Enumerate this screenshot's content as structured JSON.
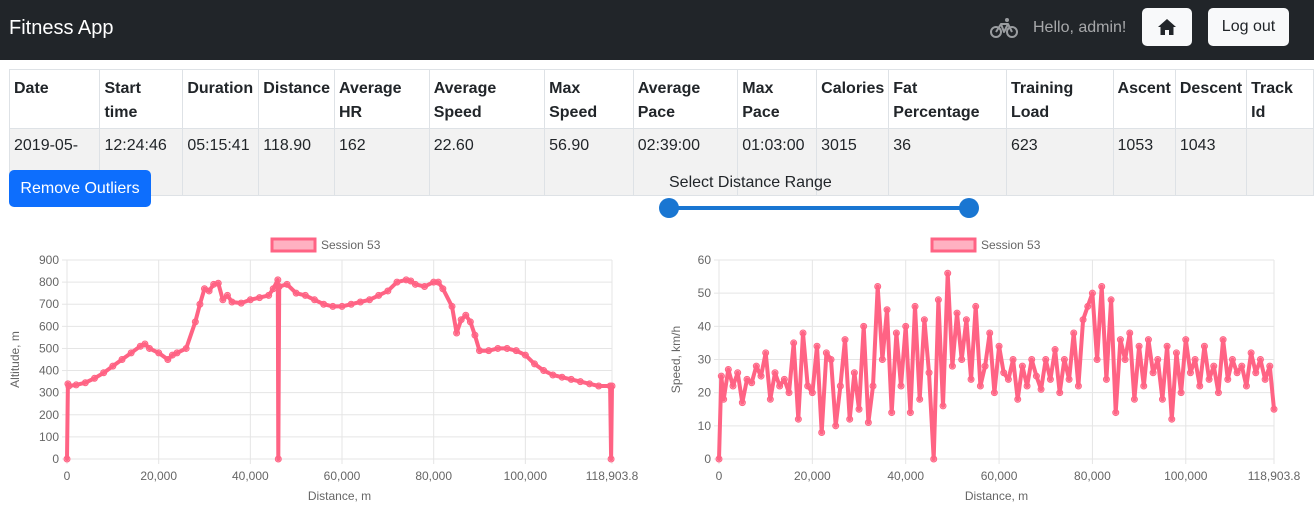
{
  "navbar": {
    "brand": "Fitness App",
    "greeting": "Hello, admin!",
    "logout_label": "Log out",
    "icons": [
      "bicycle-icon",
      "home-icon"
    ]
  },
  "table": {
    "headers": [
      [
        "Date"
      ],
      [
        "Start",
        "time"
      ],
      [
        "Duration"
      ],
      [
        "Distance"
      ],
      [
        "Average",
        "HR"
      ],
      [
        "Average",
        "Speed"
      ],
      [
        "Max",
        "Speed"
      ],
      [
        "Average",
        "Pace"
      ],
      [
        "Max",
        "Pace"
      ],
      [
        "Calories"
      ],
      [
        "Fat",
        "Percentage"
      ],
      [
        "Training",
        "Load"
      ],
      [
        "Ascent"
      ],
      [
        "Descent"
      ],
      [
        "Track",
        "Id"
      ]
    ],
    "row": [
      "2019-05-05",
      "12:24:46",
      "05:15:41",
      "118.90",
      "162",
      "22.60",
      "56.90",
      "02:39:00",
      "01:03:00",
      "3015",
      "36",
      "623",
      "1053",
      "1043",
      ""
    ]
  },
  "controls": {
    "remove_outliers_label": "Remove Outliers",
    "range_label": "Select Distance Range",
    "range_min_fraction": 0,
    "range_max_fraction": 1
  },
  "colors": {
    "navbar": "#212529",
    "primary": "#0d6efd",
    "slider": "#1976d2",
    "series": "#ff6384",
    "series_fill": "rgba(255,99,132,0.5)"
  },
  "chart_data": [
    {
      "type": "line",
      "legend": "Session 53",
      "xlabel": "Distance, m",
      "ylabel": "Altitude, m",
      "xlim": [
        0,
        118903.8
      ],
      "ylim": [
        0,
        900
      ],
      "x_ticks": [
        "0",
        "20,000",
        "40,000",
        "60,000",
        "80,000",
        "100,000",
        "118,903.8"
      ],
      "x_tick_values": [
        0,
        20000,
        40000,
        60000,
        80000,
        100000,
        118903.8
      ],
      "y_ticks": [
        0,
        100,
        200,
        300,
        400,
        500,
        600,
        700,
        800,
        900
      ],
      "grid": true,
      "x": [
        0,
        200,
        400,
        2000,
        4000,
        6000,
        8000,
        10000,
        12000,
        14000,
        16000,
        17000,
        18000,
        20000,
        22000,
        23000,
        24000,
        26000,
        28000,
        29000,
        30000,
        31000,
        32000,
        33000,
        34000,
        35000,
        36000,
        38000,
        40000,
        42000,
        44000,
        45000,
        46000,
        46100,
        46300,
        48000,
        50000,
        52000,
        54000,
        56000,
        58000,
        60000,
        62000,
        64000,
        66000,
        68000,
        70000,
        72000,
        74000,
        75000,
        76000,
        78000,
        80000,
        81000,
        82000,
        84000,
        85000,
        86000,
        87000,
        88000,
        89000,
        90000,
        92000,
        94000,
        96000,
        98000,
        100000,
        102000,
        104000,
        106000,
        108000,
        110000,
        112000,
        114000,
        116000,
        118500,
        118700,
        118903.8
      ],
      "y": [
        0,
        340,
        330,
        335,
        345,
        365,
        390,
        420,
        450,
        480,
        510,
        520,
        500,
        480,
        450,
        470,
        480,
        500,
        620,
        700,
        770,
        760,
        790,
        795,
        720,
        740,
        710,
        705,
        720,
        730,
        740,
        770,
        810,
        0,
        780,
        790,
        750,
        740,
        720,
        700,
        690,
        690,
        700,
        710,
        720,
        740,
        760,
        800,
        810,
        805,
        790,
        780,
        800,
        800,
        770,
        690,
        570,
        630,
        650,
        620,
        560,
        490,
        490,
        500,
        500,
        490,
        470,
        430,
        400,
        380,
        370,
        360,
        350,
        340,
        330,
        330,
        0,
        330
      ]
    },
    {
      "type": "line",
      "legend": "Session 53",
      "xlabel": "Distance, m",
      "ylabel": "Speed, km/h",
      "xlim": [
        0,
        118903.8
      ],
      "ylim": [
        0,
        60
      ],
      "x_ticks": [
        "0",
        "20,000",
        "40,000",
        "60,000",
        "80,000",
        "100,000",
        "118,903.8"
      ],
      "x_tick_values": [
        0,
        20000,
        40000,
        60000,
        80000,
        100000,
        118903.8
      ],
      "y_ticks": [
        0,
        10,
        20,
        30,
        40,
        50,
        60
      ],
      "grid": true,
      "x": [
        0,
        500,
        1000,
        2000,
        3000,
        4000,
        5000,
        6000,
        7000,
        8000,
        9000,
        10000,
        11000,
        12000,
        13000,
        14000,
        15000,
        16000,
        17000,
        18000,
        19000,
        20000,
        21000,
        22000,
        23000,
        24000,
        25000,
        26000,
        27000,
        28000,
        29000,
        30000,
        31000,
        32000,
        33000,
        34000,
        35000,
        36000,
        37000,
        38000,
        39000,
        40000,
        41000,
        42000,
        43000,
        44000,
        45000,
        46000,
        47000,
        48000,
        49000,
        50000,
        51000,
        52000,
        53000,
        54000,
        55000,
        56000,
        57000,
        58000,
        59000,
        60000,
        61000,
        62000,
        63000,
        64000,
        65000,
        66000,
        67000,
        68000,
        69000,
        70000,
        71000,
        72000,
        73000,
        74000,
        75000,
        76000,
        77000,
        78000,
        79000,
        80000,
        81000,
        82000,
        83000,
        84000,
        85000,
        86000,
        87000,
        88000,
        89000,
        90000,
        91000,
        92000,
        93000,
        94000,
        95000,
        96000,
        97000,
        98000,
        99000,
        100000,
        101000,
        102000,
        103000,
        104000,
        105000,
        106000,
        107000,
        108000,
        109000,
        110000,
        111000,
        112000,
        113000,
        114000,
        115000,
        116000,
        117000,
        118000,
        118903.8
      ],
      "y": [
        0,
        25,
        18,
        27,
        22,
        26,
        17,
        24,
        23,
        28,
        25,
        32,
        18,
        26,
        22,
        24,
        20,
        35,
        12,
        38,
        22,
        20,
        34,
        8,
        32,
        30,
        10,
        22,
        36,
        12,
        26,
        15,
        40,
        11,
        22,
        52,
        30,
        45,
        14,
        38,
        22,
        40,
        14,
        46,
        18,
        42,
        26,
        0,
        48,
        16,
        56,
        28,
        44,
        30,
        42,
        24,
        46,
        22,
        28,
        38,
        20,
        34,
        26,
        24,
        30,
        18,
        28,
        22,
        30,
        25,
        21,
        30,
        24,
        33,
        20,
        30,
        24,
        38,
        22,
        42,
        46,
        50,
        30,
        52,
        24,
        48,
        14,
        36,
        30,
        38,
        18,
        34,
        22,
        36,
        26,
        30,
        18,
        34,
        12,
        32,
        20,
        36,
        26,
        30,
        22,
        34,
        24,
        28,
        20,
        36,
        24,
        30,
        26,
        28,
        22,
        32,
        26,
        30,
        24,
        28,
        15
      ]
    }
  ]
}
